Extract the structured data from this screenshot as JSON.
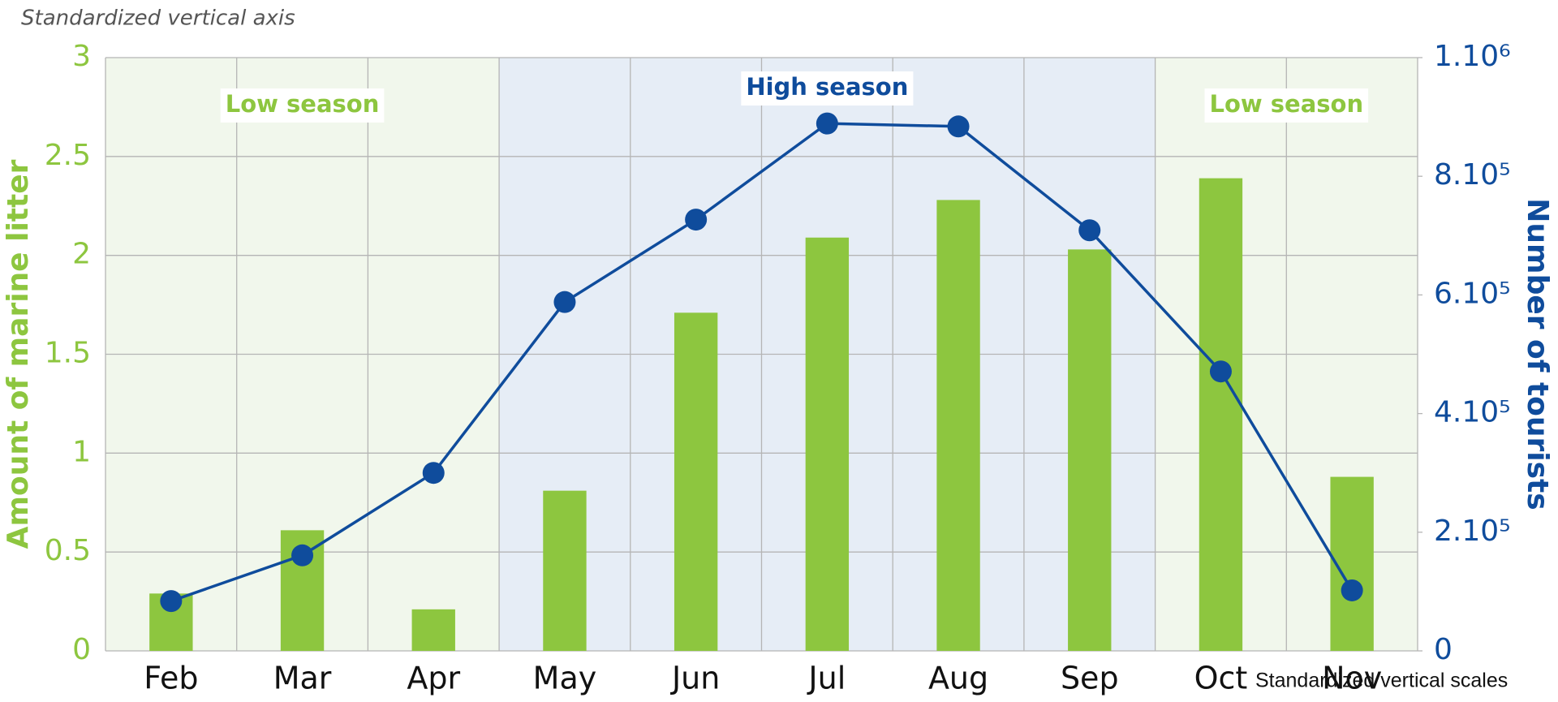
{
  "chart_data": {
    "type": "bar+line",
    "subtitle": "Standardized vertical axis",
    "note": "Standardized vertical scales",
    "categories": [
      "Feb",
      "Mar",
      "Apr",
      "May",
      "Jun",
      "Jul",
      "Aug",
      "Sep",
      "Oct",
      "Nov"
    ],
    "series": [
      {
        "name": "Amount of marine litter",
        "type": "bar",
        "axis": "y",
        "color": "#8dc63f",
        "values": [
          0.29,
          0.61,
          0.21,
          0.81,
          1.71,
          2.09,
          2.28,
          2.03,
          2.39,
          0.88
        ]
      },
      {
        "name": "Number of tourists",
        "type": "line",
        "axis": "y2",
        "color": "#0f4c9c",
        "values": [
          84000,
          161000,
          300000,
          588000,
          727000,
          889000,
          884000,
          709000,
          471000,
          102000
        ]
      }
    ],
    "ylabel": "Amount of marine litter",
    "y2label": "Number of tourists",
    "ylim": [
      0,
      3
    ],
    "yticks": [
      0,
      0.5,
      1,
      1.5,
      2,
      2.5,
      3
    ],
    "y2lim": [
      0,
      1000000
    ],
    "y2ticks": [
      0,
      {
        "value": 200000,
        "label": "2.10⁵"
      },
      {
        "value": 400000,
        "label": "4.10⁵"
      },
      {
        "value": 600000,
        "label": "6.10⁵"
      },
      {
        "value": 800000,
        "label": "8.10⁵"
      },
      {
        "value": 1000000,
        "label": "1.10⁶"
      }
    ],
    "grid": true,
    "seasons": [
      {
        "label": "Low season",
        "from": "Feb",
        "to": "Apr",
        "color": "#8dc63f",
        "background": "#f1f7ec"
      },
      {
        "label": "High season",
        "from": "May",
        "to": "Sep",
        "color": "#0f4c9c",
        "background": "#e6edf6"
      },
      {
        "label": "Low season",
        "from": "Oct",
        "to": "Nov",
        "color": "#8dc63f",
        "background": "#f1f7ec"
      }
    ]
  }
}
